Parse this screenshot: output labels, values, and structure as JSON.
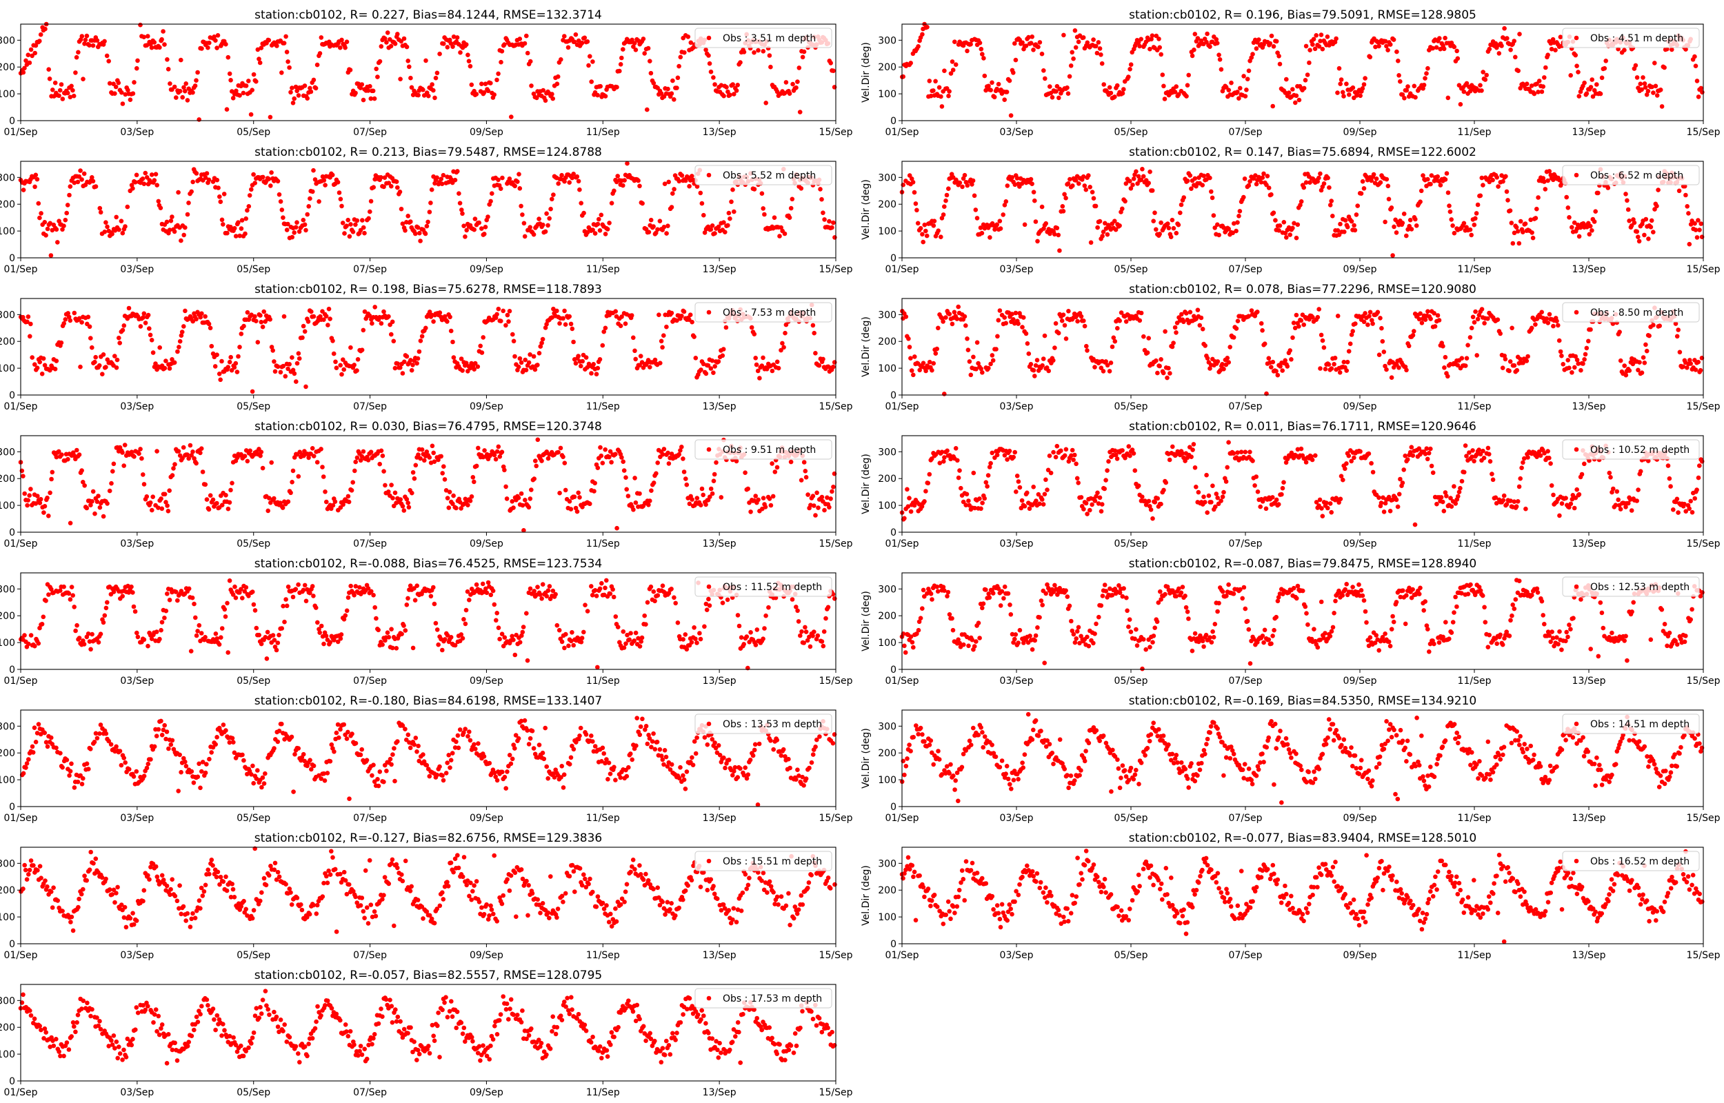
{
  "figure": {
    "background": "#ffffff",
    "marker_color": "#ff0000"
  },
  "chart_data": [
    {
      "type": "scatter",
      "title": "station:cb0102, R= 0.227, Bias=84.1244, RMSE=132.3714",
      "legend": "Obs : 3.51 m depth",
      "ylabel": "",
      "xticks": [
        "01/Sep",
        "03/Sep",
        "05/Sep",
        "07/Sep",
        "09/Sep",
        "11/Sep",
        "13/Sep",
        "15/Sep"
      ],
      "yticks": [
        0,
        100,
        200,
        300
      ],
      "xlim": [
        0,
        14
      ],
      "ylim": [
        0,
        360
      ],
      "grid": false,
      "legend_loc": "top-right",
      "mode": "regime",
      "start": "wrap",
      "s": 11,
      "series": [
        {
          "name": "Obs : 3.51 m depth",
          "x": [],
          "y": []
        }
      ]
    },
    {
      "type": "scatter",
      "title": "station:cb0102, R= 0.196, Bias=79.5091, RMSE=128.9805",
      "legend": "Obs : 4.51 m depth",
      "ylabel": "Vel.Dir (deg)",
      "xticks": [
        "01/Sep",
        "03/Sep",
        "05/Sep",
        "07/Sep",
        "09/Sep",
        "11/Sep",
        "13/Sep",
        "15/Sep"
      ],
      "yticks": [
        0,
        100,
        200,
        300
      ],
      "xlim": [
        0,
        14
      ],
      "ylim": [
        0,
        360
      ],
      "grid": false,
      "legend_loc": "top-right",
      "mode": "regime",
      "start": "wrap",
      "s": 12,
      "series": [
        {
          "name": "Obs : 4.51 m depth",
          "x": [],
          "y": []
        }
      ]
    },
    {
      "type": "scatter",
      "title": "station:cb0102, R= 0.213, Bias=79.5487, RMSE=124.8788",
      "legend": "Obs : 5.52 m depth",
      "ylabel": "",
      "xticks": [
        "01/Sep",
        "03/Sep",
        "05/Sep",
        "07/Sep",
        "09/Sep",
        "11/Sep",
        "13/Sep",
        "15/Sep"
      ],
      "yticks": [
        0,
        100,
        200,
        300
      ],
      "xlim": [
        0,
        14
      ],
      "ylim": [
        0,
        360
      ],
      "grid": false,
      "legend_loc": "top-right",
      "mode": "regime",
      "start": "high",
      "s": 13,
      "series": [
        {
          "name": "Obs : 5.52 m depth",
          "x": [],
          "y": []
        }
      ]
    },
    {
      "type": "scatter",
      "title": "station:cb0102, R= 0.147, Bias=75.6894, RMSE=122.6002",
      "legend": "Obs : 6.52 m depth",
      "ylabel": "Vel.Dir (deg)",
      "xticks": [
        "01/Sep",
        "03/Sep",
        "05/Sep",
        "07/Sep",
        "09/Sep",
        "11/Sep",
        "13/Sep",
        "15/Sep"
      ],
      "yticks": [
        0,
        100,
        200,
        300
      ],
      "xlim": [
        0,
        14
      ],
      "ylim": [
        0,
        360
      ],
      "grid": false,
      "legend_loc": "top-right",
      "mode": "regime",
      "start": "high",
      "s": 14,
      "series": [
        {
          "name": "Obs : 6.52 m depth",
          "x": [],
          "y": []
        }
      ]
    },
    {
      "type": "scatter",
      "title": "station:cb0102, R= 0.198, Bias=75.6278, RMSE=118.7893",
      "legend": "Obs : 7.53 m depth",
      "ylabel": "",
      "xticks": [
        "01/Sep",
        "03/Sep",
        "05/Sep",
        "07/Sep",
        "09/Sep",
        "11/Sep",
        "13/Sep",
        "15/Sep"
      ],
      "yticks": [
        0,
        100,
        200,
        300
      ],
      "xlim": [
        0,
        14
      ],
      "ylim": [
        0,
        360
      ],
      "grid": false,
      "legend_loc": "top-right",
      "mode": "regime",
      "start": "high",
      "s": 15,
      "series": [
        {
          "name": "Obs : 7.53 m depth",
          "x": [],
          "y": []
        }
      ]
    },
    {
      "type": "scatter",
      "title": "station:cb0102, R= 0.078, Bias=77.2296, RMSE=120.9080",
      "legend": "Obs : 8.50 m depth",
      "ylabel": "Vel.Dir (deg)",
      "xticks": [
        "01/Sep",
        "03/Sep",
        "05/Sep",
        "07/Sep",
        "09/Sep",
        "11/Sep",
        "13/Sep",
        "15/Sep"
      ],
      "yticks": [
        0,
        100,
        200,
        300
      ],
      "xlim": [
        0,
        14
      ],
      "ylim": [
        0,
        360
      ],
      "grid": false,
      "legend_loc": "top-right",
      "mode": "regime",
      "start": "high",
      "s": 16,
      "series": [
        {
          "name": "Obs : 8.50 m depth",
          "x": [],
          "y": []
        }
      ]
    },
    {
      "type": "scatter",
      "title": "station:cb0102, R= 0.030, Bias=76.4795, RMSE=120.3748",
      "legend": "Obs : 9.51 m depth",
      "ylabel": "",
      "xticks": [
        "01/Sep",
        "03/Sep",
        "05/Sep",
        "07/Sep",
        "09/Sep",
        "11/Sep",
        "13/Sep",
        "15/Sep"
      ],
      "yticks": [
        0,
        100,
        200,
        300
      ],
      "xlim": [
        0,
        14
      ],
      "ylim": [
        0,
        360
      ],
      "grid": false,
      "legend_loc": "top-right",
      "mode": "regime",
      "start": "high",
      "s": 17,
      "series": [
        {
          "name": "Obs : 9.51 m depth",
          "x": [],
          "y": []
        }
      ]
    },
    {
      "type": "scatter",
      "title": "station:cb0102, R= 0.011, Bias=76.1711, RMSE=120.9646",
      "legend": "Obs : 10.52 m depth",
      "ylabel": "Vel.Dir (deg)",
      "xticks": [
        "01/Sep",
        "03/Sep",
        "05/Sep",
        "07/Sep",
        "09/Sep",
        "11/Sep",
        "13/Sep",
        "15/Sep"
      ],
      "yticks": [
        0,
        100,
        200,
        300
      ],
      "xlim": [
        0,
        14
      ],
      "ylim": [
        0,
        360
      ],
      "grid": false,
      "legend_loc": "top-right",
      "mode": "regime",
      "start": "low",
      "s": 18,
      "series": [
        {
          "name": "Obs : 10.52 m depth",
          "x": [],
          "y": []
        }
      ]
    },
    {
      "type": "scatter",
      "title": "station:cb0102, R=-0.088, Bias=76.4525, RMSE=123.7534",
      "legend": "Obs : 11.52 m depth",
      "ylabel": "",
      "xticks": [
        "01/Sep",
        "03/Sep",
        "05/Sep",
        "07/Sep",
        "09/Sep",
        "11/Sep",
        "13/Sep",
        "15/Sep"
      ],
      "yticks": [
        0,
        100,
        200,
        300
      ],
      "xlim": [
        0,
        14
      ],
      "ylim": [
        0,
        360
      ],
      "grid": false,
      "legend_loc": "top-right",
      "mode": "regime",
      "start": "high",
      "s": 19,
      "series": [
        {
          "name": "Obs : 11.52 m depth",
          "x": [],
          "y": []
        }
      ]
    },
    {
      "type": "scatter",
      "title": "station:cb0102, R=-0.087, Bias=79.8475, RMSE=128.8940",
      "legend": "Obs : 12.53 m depth",
      "ylabel": "Vel.Dir (deg)",
      "xticks": [
        "01/Sep",
        "03/Sep",
        "05/Sep",
        "07/Sep",
        "09/Sep",
        "11/Sep",
        "13/Sep",
        "15/Sep"
      ],
      "yticks": [
        0,
        100,
        200,
        300
      ],
      "xlim": [
        0,
        14
      ],
      "ylim": [
        0,
        360
      ],
      "grid": false,
      "legend_loc": "top-right",
      "mode": "regime",
      "start": "high",
      "s": 20,
      "series": [
        {
          "name": "Obs : 12.53 m depth",
          "x": [],
          "y": []
        }
      ]
    },
    {
      "type": "scatter",
      "title": "station:cb0102, R=-0.180, Bias=84.6198, RMSE=133.1407",
      "legend": "Obs : 13.53 m depth",
      "ylabel": "",
      "xticks": [
        "01/Sep",
        "03/Sep",
        "05/Sep",
        "07/Sep",
        "09/Sep",
        "11/Sep",
        "13/Sep",
        "15/Sep"
      ],
      "yticks": [
        0,
        100,
        200,
        300
      ],
      "xlim": [
        0,
        14
      ],
      "ylim": [
        0,
        360
      ],
      "grid": false,
      "legend_loc": "top-right",
      "mode": "sawtooth",
      "start": "high",
      "s": 21,
      "series": [
        {
          "name": "Obs : 13.53 m depth",
          "x": [],
          "y": []
        }
      ]
    },
    {
      "type": "scatter",
      "title": "station:cb0102, R=-0.169, Bias=84.5350, RMSE=134.9210",
      "legend": "Obs : 14.51 m depth",
      "ylabel": "Vel.Dir (deg)",
      "xticks": [
        "01/Sep",
        "03/Sep",
        "05/Sep",
        "07/Sep",
        "09/Sep",
        "11/Sep",
        "13/Sep",
        "15/Sep"
      ],
      "yticks": [
        0,
        100,
        200,
        300
      ],
      "xlim": [
        0,
        14
      ],
      "ylim": [
        0,
        360
      ],
      "grid": false,
      "legend_loc": "top-right",
      "mode": "sawtooth",
      "start": "high",
      "s": 22,
      "series": [
        {
          "name": "Obs : 14.51 m depth",
          "x": [],
          "y": []
        }
      ]
    },
    {
      "type": "scatter",
      "title": "station:cb0102, R=-0.127, Bias=82.6756, RMSE=129.3836",
      "legend": "Obs : 15.51 m depth",
      "ylabel": "",
      "xticks": [
        "01/Sep",
        "03/Sep",
        "05/Sep",
        "07/Sep",
        "09/Sep",
        "11/Sep",
        "13/Sep",
        "15/Sep"
      ],
      "yticks": [
        0,
        100,
        200,
        300
      ],
      "xlim": [
        0,
        14
      ],
      "ylim": [
        0,
        360
      ],
      "grid": false,
      "legend_loc": "top-right",
      "mode": "sawtooth",
      "start": "high",
      "s": 23,
      "series": [
        {
          "name": "Obs : 15.51 m depth",
          "x": [],
          "y": []
        }
      ]
    },
    {
      "type": "scatter",
      "title": "station:cb0102, R=-0.077, Bias=83.9404, RMSE=128.5010",
      "legend": "Obs : 16.52 m depth",
      "ylabel": "Vel.Dir (deg)",
      "xticks": [
        "01/Sep",
        "03/Sep",
        "05/Sep",
        "07/Sep",
        "09/Sep",
        "11/Sep",
        "13/Sep",
        "15/Sep"
      ],
      "yticks": [
        0,
        100,
        200,
        300
      ],
      "xlim": [
        0,
        14
      ],
      "ylim": [
        0,
        360
      ],
      "grid": false,
      "legend_loc": "top-right",
      "mode": "sawtooth",
      "start": "high",
      "s": 24,
      "series": [
        {
          "name": "Obs : 16.52 m depth",
          "x": [],
          "y": []
        }
      ]
    },
    {
      "type": "scatter",
      "title": "station:cb0102, R=-0.057, Bias=82.5557, RMSE=128.0795",
      "legend": "Obs : 17.53 m depth",
      "ylabel": "",
      "xticks": [
        "01/Sep",
        "03/Sep",
        "05/Sep",
        "07/Sep",
        "09/Sep",
        "11/Sep",
        "13/Sep",
        "15/Sep"
      ],
      "yticks": [
        0,
        100,
        200,
        300
      ],
      "xlim": [
        0,
        14
      ],
      "ylim": [
        0,
        360
      ],
      "grid": false,
      "legend_loc": "top-right",
      "mode": "sawtooth",
      "start": "high",
      "s": 25,
      "series": [
        {
          "name": "Obs : 17.53 m depth",
          "x": [],
          "y": []
        }
      ]
    }
  ]
}
